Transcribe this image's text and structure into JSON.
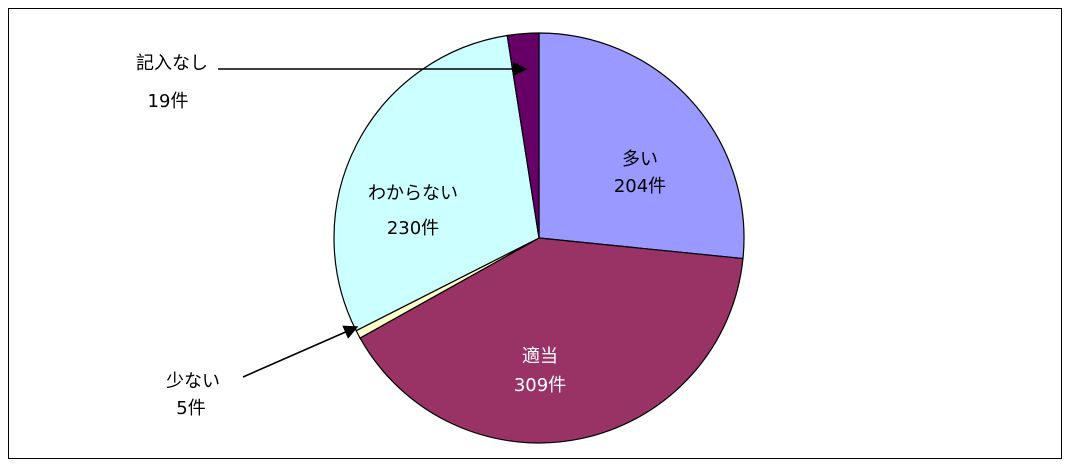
{
  "chart_data": {
    "type": "pie",
    "title": "",
    "categories": [
      "多い",
      "適当",
      "少ない",
      "わからない",
      "記入なし"
    ],
    "values": [
      204,
      309,
      5,
      230,
      19
    ],
    "value_labels": [
      "204件",
      "309件",
      "5件",
      "230件",
      "19件"
    ],
    "colors": [
      "#9999FF",
      "#993366",
      "#FFFFCC",
      "#CCFFFF",
      "#660066"
    ],
    "label_colors": [
      "#000000",
      "#FFFFFF",
      "#000000",
      "#000000",
      "#000000"
    ],
    "start_angle_deg": 0,
    "direction": "clockwise",
    "legend": "none"
  }
}
